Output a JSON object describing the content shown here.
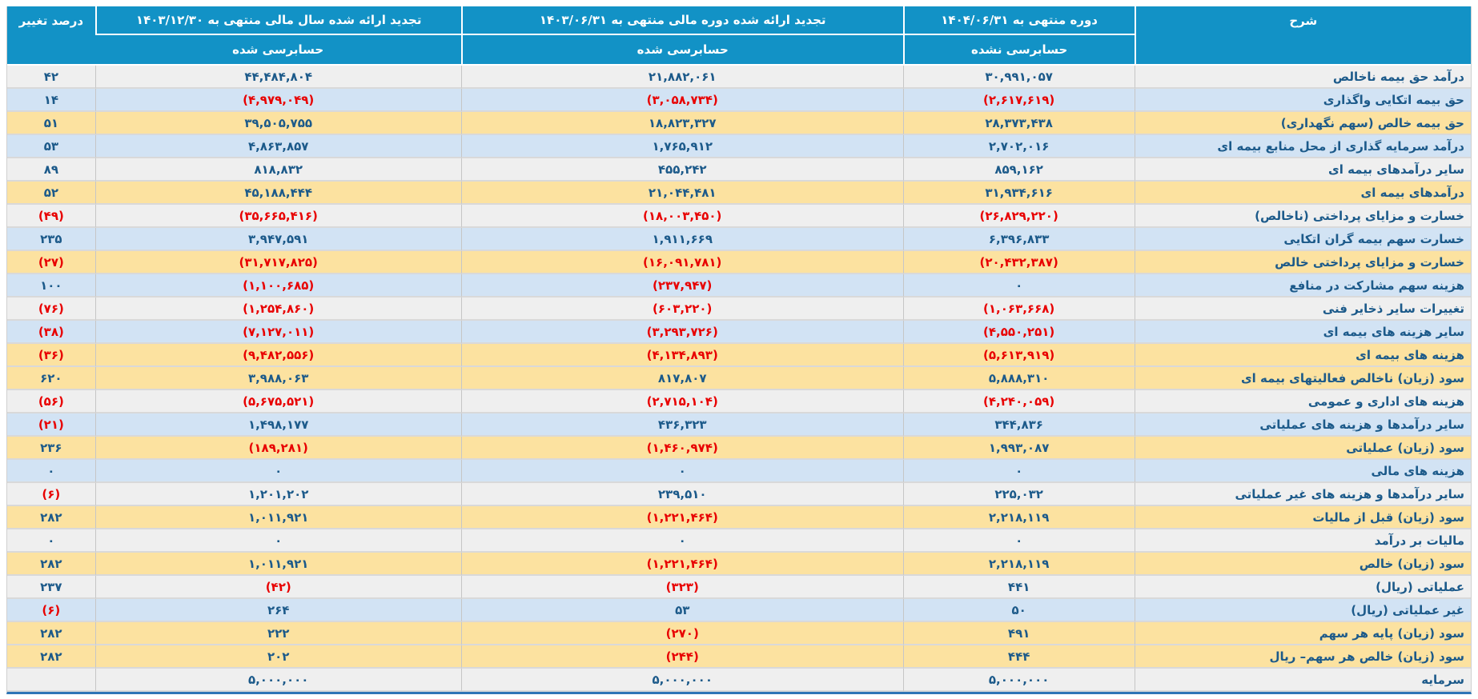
{
  "colors": {
    "header_bg": "#1292c6",
    "header_text": "#ffffff",
    "row_gray": "#efefef",
    "row_blue": "#d2e3f4",
    "row_yellow": "#fce2a0",
    "text_primary": "#1c5a8a",
    "text_negative": "#e80000",
    "table_bottom_border": "#2e75b6"
  },
  "table": {
    "header": {
      "description": "شرح",
      "current": {
        "title": "دوره منتهی به ۱۴۰۴/۰۶/۳۱",
        "sub": "حسابرسی نشده"
      },
      "restated_period": {
        "title": "تجدید ارائه شده دوره مالی منتهی به ۱۴۰۳/۰۶/۳۱",
        "sub": "حسابرسی شده"
      },
      "restated_year": {
        "title": "تجدید ارائه شده سال مالی منتهی به ۱۴۰۳/۱۲/۳۰",
        "sub": "حسابرسی شده"
      },
      "change": "درصد تغییر"
    },
    "rows": [
      {
        "label": "درآمد حق بیمه ناخالص",
        "current": "۳۰,۹۹۱,۰۵۷",
        "restated_period": "۲۱,۸۸۲,۰۶۱",
        "restated_year": "۴۴,۴۸۴,۸۰۴",
        "change": "۴۲",
        "tone": "gray"
      },
      {
        "label": "حق بیمه اتکایی واگذاری",
        "current": "(۲,۶۱۷,۶۱۹)",
        "restated_period": "(۳,۰۵۸,۷۳۴)",
        "restated_year": "(۴,۹۷۹,۰۴۹)",
        "change": "۱۴",
        "tone": "blue"
      },
      {
        "label": "حق بیمه خالص (سهم نگهداری)",
        "current": "۲۸,۳۷۳,۴۳۸",
        "restated_period": "۱۸,۸۲۳,۳۲۷",
        "restated_year": "۳۹,۵۰۵,۷۵۵",
        "change": "۵۱",
        "tone": "yellow"
      },
      {
        "label": "درآمد سرمایه گذاری از محل منابع بیمه ای",
        "current": "۲,۷۰۲,۰۱۶",
        "restated_period": "۱,۷۶۵,۹۱۲",
        "restated_year": "۴,۸۶۳,۸۵۷",
        "change": "۵۳",
        "tone": "blue"
      },
      {
        "label": "سایر درآمدهای بیمه ای",
        "current": "۸۵۹,۱۶۲",
        "restated_period": "۴۵۵,۲۴۲",
        "restated_year": "۸۱۸,۸۳۲",
        "change": "۸۹",
        "tone": "gray"
      },
      {
        "label": "درآمدهای بیمه ای",
        "current": "۳۱,۹۳۴,۶۱۶",
        "restated_period": "۲۱,۰۴۴,۴۸۱",
        "restated_year": "۴۵,۱۸۸,۴۴۴",
        "change": "۵۲",
        "tone": "yellow"
      },
      {
        "label": "خسارت و مزایای پرداختی (ناخالص)",
        "current": "(۲۶,۸۲۹,۲۲۰)",
        "restated_period": "(۱۸,۰۰۳,۴۵۰)",
        "restated_year": "(۳۵,۶۶۵,۴۱۶)",
        "change": "(۴۹)",
        "tone": "gray"
      },
      {
        "label": "خسارت سهم بیمه گران اتکایی",
        "current": "۶,۳۹۶,۸۳۳",
        "restated_period": "۱,۹۱۱,۶۶۹",
        "restated_year": "۳,۹۴۷,۵۹۱",
        "change": "۲۳۵",
        "tone": "blue"
      },
      {
        "label": "خسارت و مزایای پرداختی خالص",
        "current": "(۲۰,۴۳۲,۳۸۷)",
        "restated_period": "(۱۶,۰۹۱,۷۸۱)",
        "restated_year": "(۳۱,۷۱۷,۸۲۵)",
        "change": "(۲۷)",
        "tone": "yellow"
      },
      {
        "label": "هزینه سهم مشارکت در منافع",
        "current": "۰",
        "restated_period": "(۲۳۷,۹۴۷)",
        "restated_year": "(۱,۱۰۰,۶۸۵)",
        "change": "۱۰۰",
        "tone": "blue"
      },
      {
        "label": "تغییرات سایر ذخایر فنی",
        "current": "(۱,۰۶۳,۶۶۸)",
        "restated_period": "(۶۰۳,۲۲۰)",
        "restated_year": "(۱,۲۵۴,۸۶۰)",
        "change": "(۷۶)",
        "tone": "gray"
      },
      {
        "label": "سایر هزینه های بیمه ای",
        "current": "(۴,۵۵۰,۲۵۱)",
        "restated_period": "(۳,۲۹۳,۷۲۶)",
        "restated_year": "(۷,۱۲۷,۰۱۱)",
        "change": "(۳۸)",
        "tone": "blue"
      },
      {
        "label": "هزینه های بیمه ای",
        "current": "(۵,۶۱۳,۹۱۹)",
        "restated_period": "(۴,۱۳۴,۸۹۳)",
        "restated_year": "(۹,۴۸۲,۵۵۶)",
        "change": "(۳۶)",
        "tone": "yellow"
      },
      {
        "label": "سود (زیان) ناخالص فعالیتهای بیمه ای",
        "current": "۵,۸۸۸,۳۱۰",
        "restated_period": "۸۱۷,۸۰۷",
        "restated_year": "۳,۹۸۸,۰۶۳",
        "change": "۶۲۰",
        "tone": "yellow"
      },
      {
        "label": "هزینه های اداری و عمومی",
        "current": "(۴,۲۴۰,۰۵۹)",
        "restated_period": "(۲,۷۱۵,۱۰۴)",
        "restated_year": "(۵,۶۷۵,۵۲۱)",
        "change": "(۵۶)",
        "tone": "gray"
      },
      {
        "label": "سایر درآمدها و هزینه های عملیاتی",
        "current": "۳۴۴,۸۳۶",
        "restated_period": "۴۳۶,۳۲۳",
        "restated_year": "۱,۴۹۸,۱۷۷",
        "change": "(۲۱)",
        "tone": "blue"
      },
      {
        "label": "سود (زیان) عملیاتی",
        "current": "۱,۹۹۳,۰۸۷",
        "restated_period": "(۱,۴۶۰,۹۷۴)",
        "restated_year": "(۱۸۹,۲۸۱)",
        "change": "۲۳۶",
        "tone": "yellow"
      },
      {
        "label": "هزینه های مالی",
        "current": "۰",
        "restated_period": "۰",
        "restated_year": "۰",
        "change": "۰",
        "tone": "blue"
      },
      {
        "label": "سایر درآمدها و هزینه های غیر عملیاتی",
        "current": "۲۲۵,۰۳۲",
        "restated_period": "۲۳۹,۵۱۰",
        "restated_year": "۱,۲۰۱,۲۰۲",
        "change": "(۶)",
        "tone": "gray"
      },
      {
        "label": "سود (زیان) قبل از مالیات",
        "current": "۲,۲۱۸,۱۱۹",
        "restated_period": "(۱,۲۲۱,۴۶۴)",
        "restated_year": "۱,۰۱۱,۹۲۱",
        "change": "۲۸۲",
        "tone": "yellow"
      },
      {
        "label": "مالیات بر درآمد",
        "current": "۰",
        "restated_period": "۰",
        "restated_year": "۰",
        "change": "۰",
        "tone": "gray"
      },
      {
        "label": "سود (زیان) خالص",
        "current": "۲,۲۱۸,۱۱۹",
        "restated_period": "(۱,۲۲۱,۴۶۴)",
        "restated_year": "۱,۰۱۱,۹۲۱",
        "change": "۲۸۲",
        "tone": "yellow"
      },
      {
        "label": "عملیاتی (ریال)",
        "current": "۴۴۱",
        "restated_period": "(۳۲۳)",
        "restated_year": "(۴۲)",
        "change": "۲۳۷",
        "tone": "gray"
      },
      {
        "label": "غیر عملیاتی (ریال)",
        "current": "۵۰",
        "restated_period": "۵۳",
        "restated_year": "۲۶۴",
        "change": "(۶)",
        "tone": "blue"
      },
      {
        "label": "سود (زیان) پایه هر سهم",
        "current": "۴۹۱",
        "restated_period": "(۲۷۰)",
        "restated_year": "۲۲۲",
        "change": "۲۸۲",
        "tone": "yellow"
      },
      {
        "label": "سود (زیان) خالص هر سهم– ریال",
        "current": "۴۴۴",
        "restated_period": "(۲۴۴)",
        "restated_year": "۲۰۲",
        "change": "۲۸۲",
        "tone": "yellow"
      },
      {
        "label": "سرمایه",
        "current": "۵,۰۰۰,۰۰۰",
        "restated_period": "۵,۰۰۰,۰۰۰",
        "restated_year": "۵,۰۰۰,۰۰۰",
        "change": "",
        "tone": "gray"
      }
    ]
  }
}
